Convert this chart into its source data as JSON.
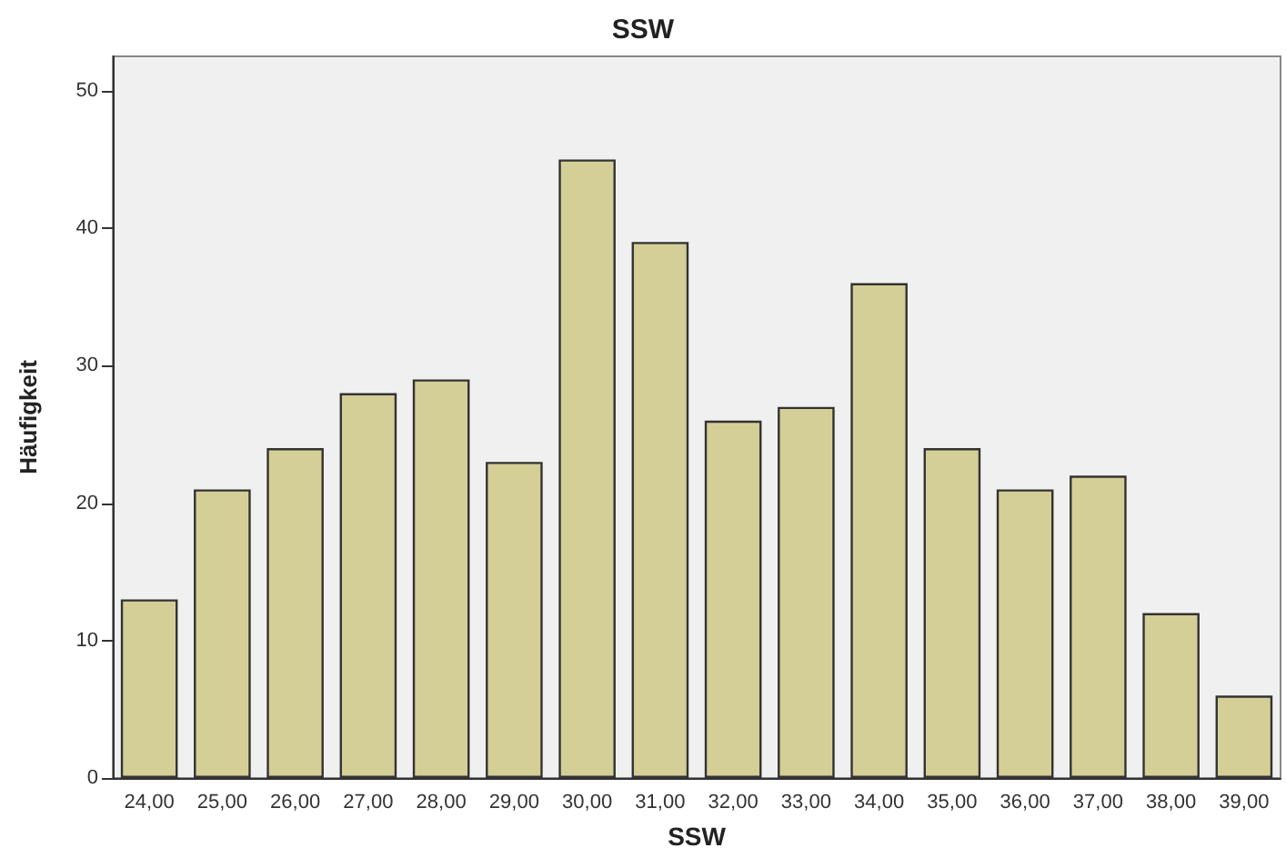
{
  "chart_data": {
    "type": "bar",
    "title": "SSW",
    "xlabel": "SSW",
    "ylabel": "Häufigkeit",
    "categories": [
      "24,00",
      "25,00",
      "26,00",
      "27,00",
      "28,00",
      "29,00",
      "30,00",
      "31,00",
      "32,00",
      "33,00",
      "34,00",
      "35,00",
      "36,00",
      "37,00",
      "38,00",
      "39,00"
    ],
    "values": [
      13,
      21,
      24,
      28,
      29,
      23,
      45,
      39,
      26,
      27,
      36,
      24,
      21,
      22,
      12,
      6
    ],
    "color": "#d4cf96",
    "ylim": [
      0,
      52.5
    ],
    "yticks": [
      0,
      10,
      20,
      30,
      40,
      50
    ],
    "grid": false
  }
}
